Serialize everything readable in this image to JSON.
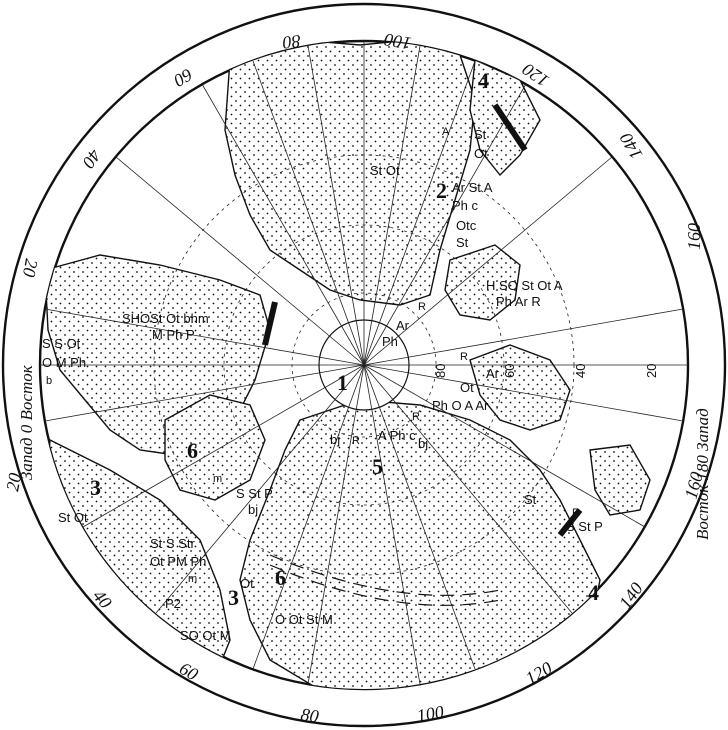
{
  "frame": {
    "west_label": "Запад 0 Восток",
    "east_label": "Восток 180 Запад"
  },
  "degree_labels": {
    "d80_top": "80",
    "d100_top": "100",
    "d120_top": "120",
    "d140_top": "140",
    "d160_right_top": "160",
    "d60_left_top": "60",
    "d40_left_top": "40",
    "d20_left_top": "20",
    "d20_left_bottom": "20",
    "d40_bottom": "40",
    "d60_bottom": "60",
    "d80_bottom": "80",
    "d100_bottom": "100",
    "d120_bottom": "120",
    "d140_bottom": "140",
    "d160_right_bottom": "160",
    "lat20_right": "20",
    "lat40_right": "40",
    "lat60_right": "60",
    "lat80_right": "80"
  },
  "regions": {
    "r1": "1",
    "r2": "2",
    "r3_left": "3",
    "r3_bottom": "3",
    "r4_top": "4",
    "r4_bottom": "4",
    "r5": "5",
    "r6_left": "6",
    "r6_bottom": "6"
  },
  "symbols": {
    "top_A": "A",
    "top_St": "St",
    "top_Ot": "Ot",
    "st_ot_center": "St Ot",
    "ar_st_a": "Ar St A",
    "ph_c": "Ph c",
    "otc": "Otc",
    "st_mid": "St",
    "hso": "H SO St Ot A",
    "ph_ar_r": "Ph Ar R",
    "r_center": "R",
    "ar_center": "Ar",
    "ph_center": "Ph",
    "r_right": "R",
    "ar_right": "Ar",
    "ot_right": "Ot",
    "ph_o_a_ar": "Ph O A Ar",
    "r_bj": "R",
    "a_ph_c": "A Ph c",
    "bj_left": "bj",
    "r_low": "R",
    "bj_right": "bj",
    "shos": "SHOSt Ot bhm",
    "m_ph_p": "M Ph P",
    "s_s_ot": "S S Ot",
    "o_m_ph": "O M Ph",
    "b_left": "b",
    "m_mid": "m",
    "s_st_p": "S St P",
    "bj_mid": "bj",
    "st_ot_left": "St Ot",
    "st_s_str": "St S Str",
    "ot_pm_ph": "Ot PM Ph",
    "m_low": "m",
    "ot_low": "Ot",
    "p2": "P2",
    "so_ot_m": "SO Ot M",
    "o_ot_st_m": "O Ot St M",
    "st_right": "St",
    "r_right_low": "R",
    "s_st_p_right": "S St P"
  }
}
